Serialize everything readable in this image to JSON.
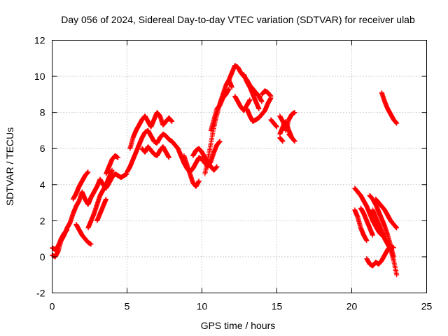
{
  "chart_data": {
    "type": "scatter",
    "title": "Day 056 of 2024, Sidereal Day-to-day VTEC variation (SDTVAR) for receiver ulab",
    "xlabel": "GPS time / hours",
    "ylabel": "SDTVAR / TECUs",
    "xlim": [
      0,
      25
    ],
    "ylim": [
      -2,
      12
    ],
    "x_ticks": [
      0,
      5,
      10,
      15,
      20,
      25
    ],
    "y_ticks": [
      -2,
      0,
      2,
      4,
      6,
      8,
      10,
      12
    ],
    "x_tick_labels": [
      "0",
      "5",
      "10",
      "15",
      "20",
      "25"
    ],
    "y_tick_labels": [
      "-2",
      "0",
      "2",
      "4",
      "6",
      "8",
      "10",
      "12"
    ],
    "grid": true,
    "marker": "+",
    "color": "#ff0000",
    "series": [
      {
        "name": "SDTVAR",
        "tracks": [
          {
            "x": [
              0.0,
              0.2,
              0.4,
              0.6,
              0.8,
              1.0,
              1.2,
              1.4,
              1.6,
              1.8,
              2.0,
              2.2,
              2.4,
              2.6,
              2.8,
              3.0,
              3.2,
              3.4,
              3.6,
              3.8,
              4.0,
              4.2,
              4.4,
              4.6,
              4.8,
              5.0
            ],
            "y": [
              0.1,
              0.0,
              0.3,
              0.9,
              1.2,
              1.6,
              1.9,
              2.4,
              2.8,
              3.1,
              3.6,
              3.2,
              2.9,
              3.3,
              3.6,
              3.9,
              4.3,
              4.0,
              3.8,
              4.1,
              4.4,
              4.6,
              4.5,
              4.4,
              4.5,
              4.6
            ]
          },
          {
            "x": [
              0.0,
              0.2,
              0.4,
              0.6,
              0.8,
              1.0
            ],
            "y": [
              0.5,
              0.4,
              0.6,
              1.0,
              1.3,
              1.5
            ]
          },
          {
            "x": [
              1.4,
              1.6,
              1.8,
              2.0,
              2.2,
              2.4
            ],
            "y": [
              3.2,
              3.5,
              3.9,
              4.2,
              4.5,
              4.7
            ]
          },
          {
            "x": [
              1.6,
              1.8,
              2.0,
              2.2,
              2.4,
              2.6
            ],
            "y": [
              1.8,
              1.5,
              1.2,
              1.0,
              0.8,
              0.7
            ]
          },
          {
            "x": [
              2.4,
              2.6,
              2.8,
              3.0,
              3.2,
              3.4,
              3.6,
              3.8,
              4.0
            ],
            "y": [
              1.6,
              2.0,
              2.4,
              2.9,
              3.4,
              3.7,
              4.0,
              4.4,
              4.8
            ]
          },
          {
            "x": [
              3.6,
              3.8,
              4.0,
              4.2,
              4.4
            ],
            "y": [
              4.6,
              5.0,
              5.4,
              5.6,
              5.5
            ]
          },
          {
            "x": [
              3.0,
              3.2,
              3.4,
              3.6
            ],
            "y": [
              2.0,
              2.4,
              2.8,
              3.2
            ]
          },
          {
            "x": [
              5.0,
              5.2,
              5.4,
              5.6,
              5.8,
              6.0,
              6.2,
              6.4,
              6.6,
              6.8,
              7.0,
              7.2,
              7.4,
              7.6,
              7.8,
              8.0,
              8.2,
              8.4
            ],
            "y": [
              4.7,
              5.0,
              5.4,
              5.8,
              6.2,
              6.6,
              6.9,
              7.0,
              6.7,
              6.4,
              6.3,
              6.6,
              6.8,
              6.7,
              6.5,
              6.4,
              6.2,
              6.0
            ]
          },
          {
            "x": [
              5.2,
              5.4,
              5.6,
              5.8,
              6.0,
              6.2,
              6.4,
              6.6,
              6.8,
              7.0,
              7.2,
              7.4,
              7.6,
              7.8,
              8.0
            ],
            "y": [
              6.0,
              6.6,
              7.0,
              7.3,
              7.6,
              7.8,
              7.5,
              7.2,
              7.6,
              8.0,
              7.8,
              7.3,
              7.5,
              7.7,
              7.5
            ]
          },
          {
            "x": [
              6.0,
              6.2,
              6.4,
              6.6,
              6.8,
              7.0,
              7.2,
              7.4,
              7.6,
              7.8
            ],
            "y": [
              6.0,
              5.8,
              6.1,
              5.9,
              5.7,
              5.6,
              5.9,
              6.1,
              5.8,
              5.5
            ]
          },
          {
            "x": [
              8.4,
              8.6,
              8.8,
              9.0,
              9.2,
              9.4,
              9.6,
              9.8,
              10.0,
              10.2,
              10.4,
              10.6,
              10.8,
              11.0,
              11.2
            ],
            "y": [
              6.0,
              5.6,
              5.2,
              4.9,
              4.7,
              4.9,
              5.2,
              5.5,
              5.4,
              5.2,
              5.0,
              5.3,
              5.8,
              6.2,
              6.4
            ]
          },
          {
            "x": [
              8.8,
              9.0,
              9.2,
              9.4,
              9.6,
              9.8
            ],
            "y": [
              5.6,
              5.1,
              4.6,
              4.1,
              3.9,
              4.2
            ]
          },
          {
            "x": [
              9.4,
              9.6,
              9.8,
              10.0,
              10.2,
              10.4,
              10.6,
              10.8,
              11.0
            ],
            "y": [
              5.6,
              5.9,
              6.0,
              5.8,
              5.5,
              5.2,
              5.0,
              4.8,
              5.0
            ]
          },
          {
            "x": [
              10.2,
              10.4,
              10.6,
              10.8,
              11.0,
              11.2,
              11.4,
              11.6,
              11.8,
              12.0
            ],
            "y": [
              4.6,
              5.4,
              6.3,
              7.2,
              7.9,
              8.5,
              9.0,
              9.5,
              9.8,
              9.4
            ]
          },
          {
            "x": [
              10.6,
              10.8,
              11.0,
              11.2,
              11.4,
              11.6,
              11.8
            ],
            "y": [
              7.0,
              7.6,
              8.2,
              8.4,
              8.8,
              9.0,
              9.3
            ]
          },
          {
            "x": [
              11.8,
              12.0,
              12.2,
              12.4,
              12.6,
              12.8,
              13.0,
              13.2,
              13.4,
              13.6,
              13.8,
              14.0
            ],
            "y": [
              9.8,
              10.2,
              10.6,
              10.5,
              10.2,
              10.0,
              9.8,
              9.5,
              9.3,
              9.1,
              8.9,
              8.6
            ]
          },
          {
            "x": [
              12.2,
              12.4,
              12.6,
              12.8,
              13.0,
              13.2
            ],
            "y": [
              8.9,
              8.6,
              8.3,
              8.1,
              8.4,
              8.7
            ]
          },
          {
            "x": [
              12.8,
              13.0,
              13.2,
              13.4,
              13.6,
              13.8
            ],
            "y": [
              10.1,
              9.7,
              9.4,
              9.0,
              8.6,
              8.2
            ]
          },
          {
            "x": [
              13.0,
              13.2,
              13.4,
              13.6,
              13.8,
              14.0,
              14.2,
              14.4,
              14.6
            ],
            "y": [
              8.2,
              7.8,
              7.5,
              7.6,
              7.7,
              7.9,
              8.1,
              8.5,
              8.8
            ]
          },
          {
            "x": [
              14.0,
              14.2,
              14.4,
              14.6
            ],
            "y": [
              9.0,
              9.2,
              9.1,
              8.9
            ]
          },
          {
            "x": [
              14.6,
              14.8,
              15.0
            ],
            "y": [
              7.6,
              7.4,
              7.2
            ]
          },
          {
            "x": [
              15.2,
              15.4,
              15.6,
              15.8,
              16.0,
              16.2
            ],
            "y": [
              7.8,
              7.5,
              7.0,
              7.6,
              7.9,
              8.0
            ]
          },
          {
            "x": [
              15.2,
              15.4,
              15.6,
              15.8,
              16.0
            ],
            "y": [
              6.8,
              7.2,
              7.5,
              7.0,
              6.6
            ]
          },
          {
            "x": [
              15.2,
              15.4
            ],
            "y": [
              6.6,
              6.4
            ]
          },
          {
            "x": [
              15.8,
              16.0,
              16.2
            ],
            "y": [
              6.8,
              6.6,
              6.4
            ]
          },
          {
            "x": [
              20.2,
              20.4,
              20.6,
              20.8,
              21.0,
              21.2,
              21.4,
              21.6,
              21.8,
              22.0
            ],
            "y": [
              3.8,
              3.6,
              3.4,
              3.1,
              2.8,
              2.4,
              2.0,
              1.7,
              1.4,
              1.2
            ]
          },
          {
            "x": [
              20.2,
              20.4,
              20.6,
              20.8,
              21.0
            ],
            "y": [
              2.6,
              2.2,
              1.6,
              1.2,
              0.9
            ]
          },
          {
            "x": [
              20.6,
              20.8,
              21.0,
              21.2,
              21.4
            ],
            "y": [
              2.7,
              2.4,
              2.0,
              1.6,
              1.2
            ]
          },
          {
            "x": [
              21.2,
              21.4,
              21.6,
              21.8,
              22.0,
              22.2,
              22.4,
              22.6,
              22.8
            ],
            "y": [
              3.4,
              3.2,
              2.9,
              2.5,
              2.1,
              1.7,
              1.2,
              0.6,
              0.0
            ]
          },
          {
            "x": [
              21.4,
              21.6,
              21.8,
              22.0,
              22.2,
              22.4,
              22.6,
              22.8,
              23.0
            ],
            "y": [
              2.6,
              2.2,
              1.8,
              1.4,
              1.0,
              0.7,
              0.4,
              -0.2,
              -1.0
            ]
          },
          {
            "x": [
              21.6,
              21.8,
              22.0,
              22.2,
              22.4,
              22.6,
              22.8,
              23.0
            ],
            "y": [
              3.2,
              3.0,
              2.8,
              2.6,
              2.3,
              2.0,
              1.8,
              1.6
            ]
          },
          {
            "x": [
              21.0,
              21.2,
              21.4,
              21.6,
              21.8,
              22.0,
              22.2,
              22.4,
              22.6,
              22.8
            ],
            "y": [
              -0.1,
              -0.4,
              -0.5,
              -0.3,
              -0.4,
              -0.2,
              0.1,
              0.4,
              0.6,
              0.5
            ]
          },
          {
            "x": [
              22.0,
              22.2,
              22.4,
              22.6,
              22.8,
              23.0
            ],
            "y": [
              9.1,
              8.6,
              8.2,
              7.9,
              7.6,
              7.4
            ]
          }
        ]
      }
    ]
  }
}
